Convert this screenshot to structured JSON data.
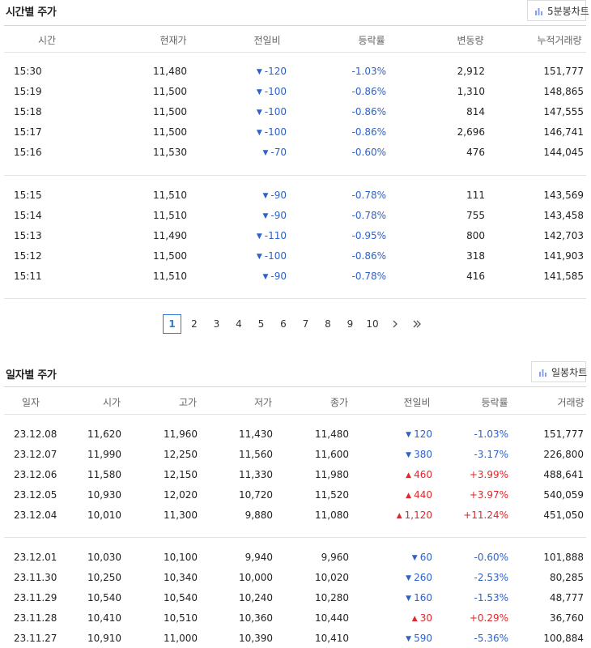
{
  "time_section": {
    "title": "시간별 주가",
    "chart_button_label": "5분봉차트",
    "chart_button_icon": "bar-chart-icon",
    "headers": [
      "시간",
      "현재가",
      "전일비",
      "등락률",
      "변동량",
      "누적거래량"
    ],
    "group1": [
      {
        "time": "15:30",
        "price": "11,480",
        "dir": "down",
        "change": "-120",
        "rate": "-1.03%",
        "volume": "2,912",
        "cumulative": "151,777"
      },
      {
        "time": "15:19",
        "price": "11,500",
        "dir": "down",
        "change": "-100",
        "rate": "-0.86%",
        "volume": "1,310",
        "cumulative": "148,865"
      },
      {
        "time": "15:18",
        "price": "11,500",
        "dir": "down",
        "change": "-100",
        "rate": "-0.86%",
        "volume": "814",
        "cumulative": "147,555"
      },
      {
        "time": "15:17",
        "price": "11,500",
        "dir": "down",
        "change": "-100",
        "rate": "-0.86%",
        "volume": "2,696",
        "cumulative": "146,741"
      },
      {
        "time": "15:16",
        "price": "11,530",
        "dir": "down",
        "change": "-70",
        "rate": "-0.60%",
        "volume": "476",
        "cumulative": "144,045"
      }
    ],
    "group2": [
      {
        "time": "15:15",
        "price": "11,510",
        "dir": "down",
        "change": "-90",
        "rate": "-0.78%",
        "volume": "111",
        "cumulative": "143,569"
      },
      {
        "time": "15:14",
        "price": "11,510",
        "dir": "down",
        "change": "-90",
        "rate": "-0.78%",
        "volume": "755",
        "cumulative": "143,458"
      },
      {
        "time": "15:13",
        "price": "11,490",
        "dir": "down",
        "change": "-110",
        "rate": "-0.95%",
        "volume": "800",
        "cumulative": "142,703"
      },
      {
        "time": "15:12",
        "price": "11,500",
        "dir": "down",
        "change": "-100",
        "rate": "-0.86%",
        "volume": "318",
        "cumulative": "141,903"
      },
      {
        "time": "15:11",
        "price": "11,510",
        "dir": "down",
        "change": "-90",
        "rate": "-0.78%",
        "volume": "416",
        "cumulative": "141,585"
      }
    ],
    "pagination": {
      "pages": [
        "1",
        "2",
        "3",
        "4",
        "5",
        "6",
        "7",
        "8",
        "9",
        "10"
      ],
      "active_page": "1",
      "next_icon": "chevron-right-icon",
      "last_icon": "double-chevron-right-icon"
    }
  },
  "daily_section": {
    "title": "일자별 주가",
    "chart_button_label": "일봉차트",
    "chart_button_icon": "bar-chart-icon",
    "headers": [
      "일자",
      "시가",
      "고가",
      "저가",
      "종가",
      "전일비",
      "등락률",
      "거래량"
    ],
    "group1": [
      {
        "date": "23.12.08",
        "open": "11,620",
        "high": "11,960",
        "low": "11,430",
        "close": "11,480",
        "dir": "down",
        "change": "120",
        "rate": "-1.03%",
        "volume": "151,777"
      },
      {
        "date": "23.12.07",
        "open": "11,990",
        "high": "12,250",
        "low": "11,560",
        "close": "11,600",
        "dir": "down",
        "change": "380",
        "rate": "-3.17%",
        "volume": "226,800"
      },
      {
        "date": "23.12.06",
        "open": "11,580",
        "high": "12,150",
        "low": "11,330",
        "close": "11,980",
        "dir": "up",
        "change": "460",
        "rate": "+3.99%",
        "volume": "488,641"
      },
      {
        "date": "23.12.05",
        "open": "10,930",
        "high": "12,020",
        "low": "10,720",
        "close": "11,520",
        "dir": "up",
        "change": "440",
        "rate": "+3.97%",
        "volume": "540,059"
      },
      {
        "date": "23.12.04",
        "open": "10,010",
        "high": "11,300",
        "low": "9,880",
        "close": "11,080",
        "dir": "up",
        "change": "1,120",
        "rate": "+11.24%",
        "volume": "451,050"
      }
    ],
    "group2": [
      {
        "date": "23.12.01",
        "open": "10,030",
        "high": "10,100",
        "low": "9,940",
        "close": "9,960",
        "dir": "down",
        "change": "60",
        "rate": "-0.60%",
        "volume": "101,888"
      },
      {
        "date": "23.11.30",
        "open": "10,250",
        "high": "10,340",
        "low": "10,000",
        "close": "10,020",
        "dir": "down",
        "change": "260",
        "rate": "-2.53%",
        "volume": "80,285"
      },
      {
        "date": "23.11.29",
        "open": "10,540",
        "high": "10,540",
        "low": "10,240",
        "close": "10,280",
        "dir": "down",
        "change": "160",
        "rate": "-1.53%",
        "volume": "48,777"
      },
      {
        "date": "23.11.28",
        "open": "10,410",
        "high": "10,510",
        "low": "10,360",
        "close": "10,440",
        "dir": "up",
        "change": "30",
        "rate": "+0.29%",
        "volume": "36,760"
      },
      {
        "date": "23.11.27",
        "open": "10,910",
        "high": "11,000",
        "low": "10,390",
        "close": "10,410",
        "dir": "down",
        "change": "590",
        "rate": "-5.36%",
        "volume": "100,884"
      }
    ]
  },
  "colors": {
    "down": "#2f62c9",
    "up": "#e2272c",
    "active_page": "#2a7bd9",
    "chart_icon": "#8b9ee8"
  }
}
